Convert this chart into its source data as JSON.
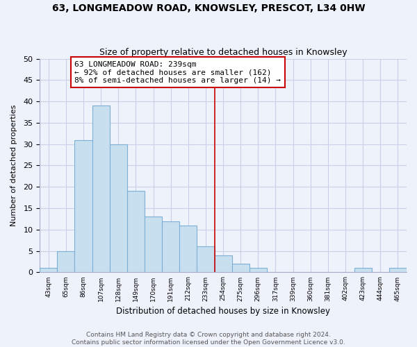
{
  "title": "63, LONGMEADOW ROAD, KNOWSLEY, PRESCOT, L34 0HW",
  "subtitle": "Size of property relative to detached houses in Knowsley",
  "xlabel": "Distribution of detached houses by size in Knowsley",
  "ylabel": "Number of detached properties",
  "bar_labels": [
    "43sqm",
    "65sqm",
    "86sqm",
    "107sqm",
    "128sqm",
    "149sqm",
    "170sqm",
    "191sqm",
    "212sqm",
    "233sqm",
    "254sqm",
    "275sqm",
    "296sqm",
    "317sqm",
    "339sqm",
    "360sqm",
    "381sqm",
    "402sqm",
    "423sqm",
    "444sqm",
    "465sqm"
  ],
  "bar_heights": [
    1,
    5,
    31,
    39,
    30,
    19,
    13,
    12,
    11,
    6,
    4,
    2,
    1,
    0,
    0,
    0,
    0,
    0,
    1,
    0,
    1
  ],
  "bar_color": "#c8dff0",
  "bar_edge_color": "#7bafd4",
  "ylim": [
    0,
    50
  ],
  "yticks": [
    0,
    5,
    10,
    15,
    20,
    25,
    30,
    35,
    40,
    45,
    50
  ],
  "vline_x_index": 10,
  "vline_color": "#cc0000",
  "annotation_title": "63 LONGMEADOW ROAD: 239sqm",
  "annotation_line1": "← 92% of detached houses are smaller (162)",
  "annotation_line2": "8% of semi-detached houses are larger (14) →",
  "annotation_box_color": "#ffffff",
  "annotation_box_edge": "#cc0000",
  "footer_line1": "Contains HM Land Registry data © Crown copyright and database right 2024.",
  "footer_line2": "Contains public sector information licensed under the Open Government Licence v3.0.",
  "bg_color": "#eef2fb",
  "grid_color": "#c8d0e8",
  "spine_color": "#aaaacc"
}
